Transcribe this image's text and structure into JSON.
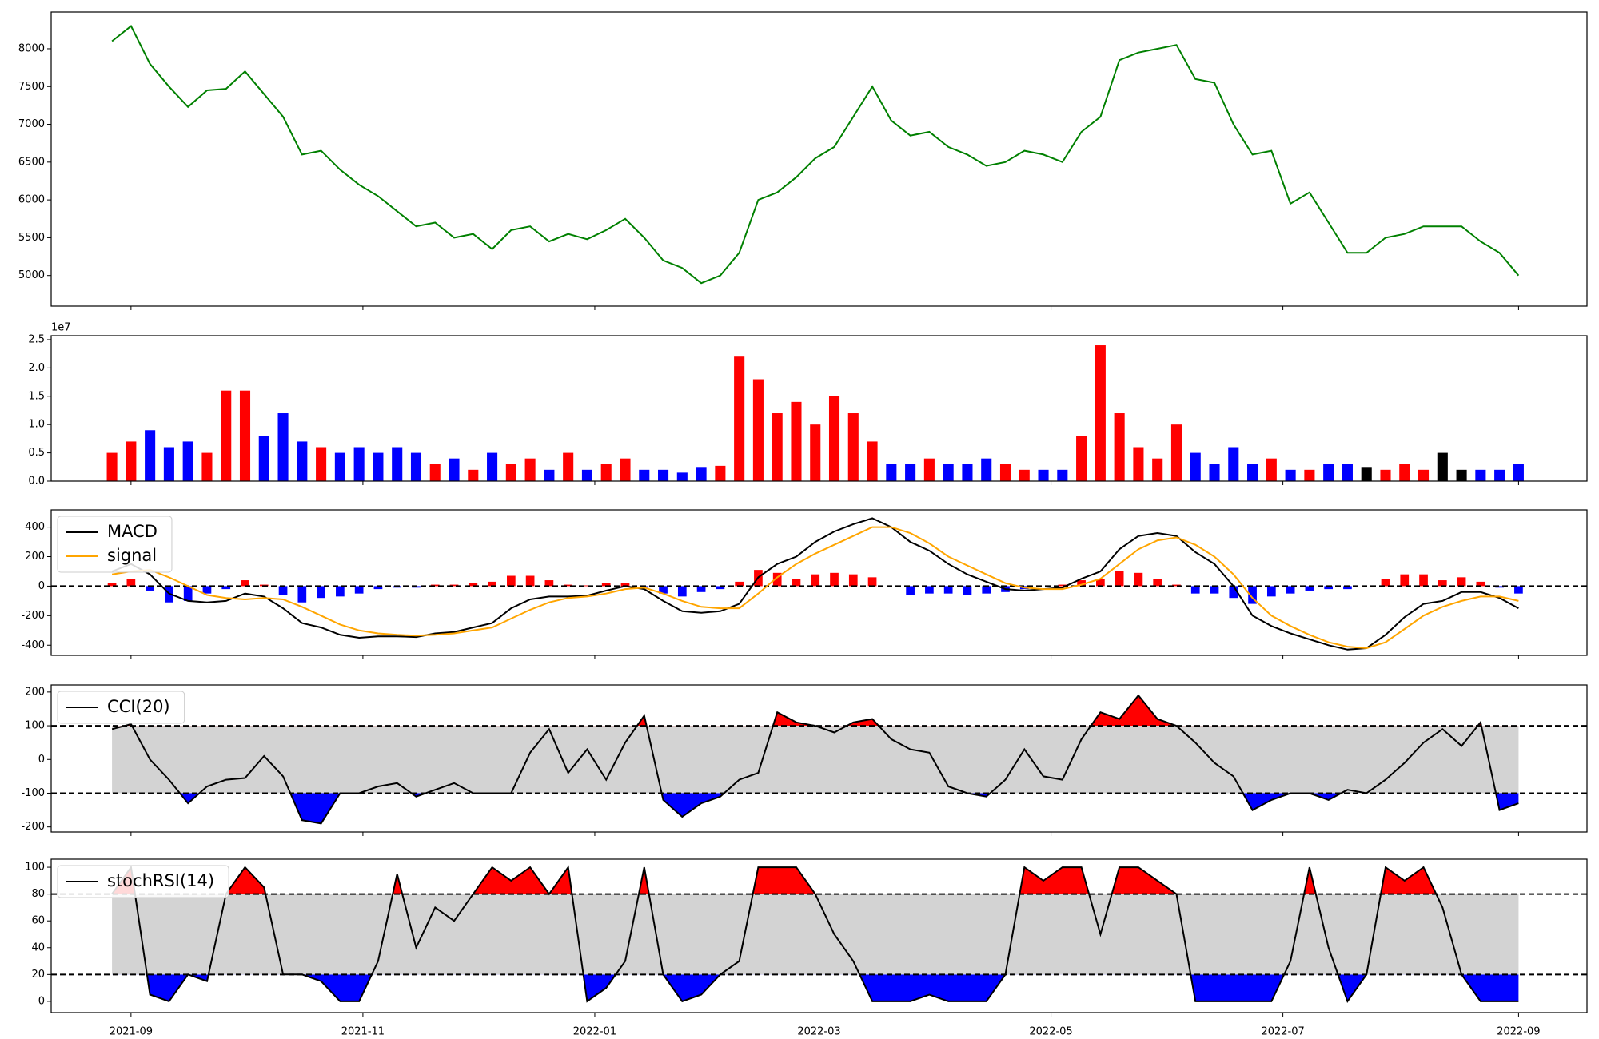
{
  "chart_data": [
    {
      "type": "line",
      "color": "green",
      "x": [
        "2021-08-27",
        "2021-09-01",
        "2021-09-06",
        "2021-09-11",
        "2021-09-16",
        "2021-09-21",
        "2021-09-26",
        "2021-10-01",
        "2021-10-06",
        "2021-10-11",
        "2021-10-16",
        "2021-10-21",
        "2021-10-26",
        "2021-10-31",
        "2021-11-05",
        "2021-11-10",
        "2021-11-15",
        "2021-11-20",
        "2021-11-25",
        "2021-11-30",
        "2021-12-05",
        "2021-12-10",
        "2021-12-15",
        "2021-12-20",
        "2021-12-25",
        "2021-12-30",
        "2022-01-04",
        "2022-01-09",
        "2022-01-14",
        "2022-01-19",
        "2022-01-24",
        "2022-01-29",
        "2022-02-03",
        "2022-02-08",
        "2022-02-13",
        "2022-02-18",
        "2022-02-23",
        "2022-02-28",
        "2022-03-05",
        "2022-03-10",
        "2022-03-15",
        "2022-03-20",
        "2022-03-25",
        "2022-03-30",
        "2022-04-04",
        "2022-04-09",
        "2022-04-14",
        "2022-04-19",
        "2022-04-24",
        "2022-04-29",
        "2022-05-04",
        "2022-05-09",
        "2022-05-14",
        "2022-05-19",
        "2022-05-24",
        "2022-05-29",
        "2022-06-03",
        "2022-06-08",
        "2022-06-13",
        "2022-06-18",
        "2022-06-23",
        "2022-06-28",
        "2022-07-03",
        "2022-07-08",
        "2022-07-13",
        "2022-07-18",
        "2022-07-23",
        "2022-07-28",
        "2022-08-02",
        "2022-08-07",
        "2022-08-12",
        "2022-08-17",
        "2022-08-22",
        "2022-08-27",
        "2022-09-01"
      ],
      "values": [
        8100,
        8300,
        7800,
        7500,
        7230,
        7450,
        7470,
        7700,
        7400,
        7100,
        6600,
        6650,
        6400,
        6200,
        6050,
        5850,
        5650,
        5700,
        5500,
        5550,
        5350,
        5600,
        5650,
        5450,
        5550,
        5480,
        5600,
        5750,
        5500,
        5200,
        5100,
        4900,
        5000,
        5300,
        6000,
        6100,
        6300,
        6550,
        6700,
        7100,
        7500,
        7050,
        6850,
        6900,
        6700,
        6600,
        6450,
        6500,
        6650,
        6600,
        6500,
        6900,
        7100,
        7850,
        7950,
        8000,
        8050,
        7600,
        7550,
        7000,
        6600,
        6650,
        5950,
        6100,
        5700,
        5300,
        5300,
        5500,
        5550,
        5650,
        5650,
        5650,
        5450,
        5300,
        5000
      ],
      "ylim": [
        4595,
        8486
      ],
      "yticks": [
        5000,
        5500,
        6000,
        6500,
        7000,
        7500,
        8000
      ]
    },
    {
      "type": "bar",
      "offset_label": "1e7",
      "values": [
        5000000,
        7000000,
        9000000,
        6000000,
        7000000,
        5000000,
        16000000,
        16000000,
        8000000,
        12000000,
        7000000,
        6000000,
        5000000,
        6000000,
        5000000,
        6000000,
        5000000,
        3000000,
        4000000,
        2000000,
        5000000,
        3000000,
        4000000,
        2000000,
        5000000,
        2000000,
        3000000,
        4000000,
        2000000,
        2000000,
        1500000,
        2500000,
        2700000,
        22000000,
        18000000,
        12000000,
        14000000,
        10000000,
        15000000,
        12000000,
        7000000,
        3000000,
        3000000,
        4000000,
        3000000,
        3000000,
        4000000,
        3000000,
        2000000,
        2000000,
        2000000,
        8000000,
        24000000,
        12000000,
        6000000,
        4000000,
        10000000,
        5000000,
        3000000,
        6000000,
        3000000,
        4000000,
        2000000,
        2000000,
        3000000,
        3000000,
        2500000,
        2000000,
        3000000,
        2000000,
        5000000,
        2000000,
        2000000,
        2000000,
        3000000
      ],
      "colors": [
        "red",
        "red",
        "blue",
        "blue",
        "blue",
        "red",
        "red",
        "red",
        "blue",
        "blue",
        "blue",
        "red",
        "blue",
        "blue",
        "blue",
        "blue",
        "blue",
        "red",
        "blue",
        "red",
        "blue",
        "red",
        "red",
        "blue",
        "red",
        "blue",
        "red",
        "red",
        "blue",
        "blue",
        "blue",
        "blue",
        "red",
        "red",
        "red",
        "red",
        "red",
        "red",
        "red",
        "red",
        "red",
        "blue",
        "blue",
        "red",
        "blue",
        "blue",
        "blue",
        "red",
        "red",
        "blue",
        "blue",
        "red",
        "red",
        "red",
        "red",
        "red",
        "red",
        "blue",
        "blue",
        "blue",
        "blue",
        "red",
        "blue",
        "red",
        "blue",
        "blue",
        "black",
        "red",
        "red",
        "red",
        "black",
        "black",
        "blue",
        "blue",
        "blue"
      ],
      "ylim": [
        0,
        25700000
      ],
      "yticks": [
        {
          "value": 0,
          "label": "0.0"
        },
        {
          "value": 5000000,
          "label": "0.5"
        },
        {
          "value": 10000000,
          "label": "1.0"
        },
        {
          "value": 15000000,
          "label": "1.5"
        },
        {
          "value": 20000000,
          "label": "2.0"
        },
        {
          "value": 25000000,
          "label": "2.5"
        }
      ]
    },
    {
      "type": "macd",
      "legend": "upper left",
      "reference_lines": [
        0
      ],
      "series": [
        {
          "name": "MACD",
          "color": "black",
          "values": [
            100,
            150,
            80,
            -50,
            -100,
            -110,
            -100,
            -50,
            -70,
            -150,
            -250,
            -280,
            -330,
            -350,
            -340,
            -340,
            -345,
            -320,
            -310,
            -280,
            -250,
            -150,
            -90,
            -70,
            -70,
            -65,
            -30,
            0,
            -20,
            -100,
            -170,
            -180,
            -170,
            -120,
            60,
            150,
            200,
            300,
            370,
            420,
            460,
            400,
            300,
            240,
            150,
            80,
            30,
            -20,
            -30,
            -20,
            -10,
            50,
            100,
            250,
            340,
            360,
            340,
            230,
            150,
            0,
            -200,
            -270,
            -320,
            -360,
            -400,
            -430,
            -420,
            -330,
            -210,
            -120,
            -100,
            -40,
            -40,
            -80,
            -150
          ]
        },
        {
          "name": "signal",
          "color": "orange",
          "values": [
            80,
            100,
            110,
            60,
            0,
            -60,
            -80,
            -90,
            -80,
            -90,
            -140,
            -200,
            -260,
            -300,
            -320,
            -330,
            -335,
            -330,
            -320,
            -300,
            -280,
            -220,
            -160,
            -110,
            -80,
            -70,
            -50,
            -20,
            -10,
            -50,
            -100,
            -140,
            -150,
            -150,
            -50,
            60,
            150,
            220,
            280,
            340,
            400,
            400,
            360,
            290,
            200,
            140,
            80,
            20,
            -10,
            -20,
            -20,
            10,
            50,
            150,
            250,
            310,
            330,
            280,
            200,
            80,
            -80,
            -200,
            -270,
            -330,
            -380,
            -410,
            -420,
            -380,
            -290,
            -200,
            -140,
            -100,
            -70,
            -70,
            -100
          ]
        }
      ],
      "histogram": {
        "positive_color": "red",
        "negative_color": "blue",
        "values": [
          20,
          50,
          -30,
          -110,
          -100,
          -50,
          -20,
          40,
          10,
          -60,
          -110,
          -80,
          -70,
          -50,
          -20,
          -10,
          -10,
          10,
          10,
          20,
          30,
          70,
          70,
          40,
          10,
          5,
          20,
          20,
          -10,
          -50,
          -70,
          -40,
          -20,
          30,
          110,
          90,
          50,
          80,
          90,
          80,
          60,
          0,
          -60,
          -50,
          -50,
          -60,
          -50,
          -40,
          -20,
          0,
          10,
          40,
          50,
          100,
          90,
          50,
          10,
          -50,
          -50,
          -80,
          -120,
          -70,
          -50,
          -30,
          -20,
          -20,
          0,
          50,
          80,
          80,
          40,
          60,
          30,
          -10,
          -50
        ]
      },
      "ylim": [
        -469,
        517
      ],
      "yticks": [
        -400,
        -200,
        0,
        200,
        400
      ]
    },
    {
      "type": "band",
      "legend": "upper left",
      "thresholds": [
        -100,
        100
      ],
      "band_color": "lightgray",
      "upper_color": "red",
      "lower_color": "blue",
      "series": [
        {
          "name": "CCI(20)",
          "color": "black",
          "values": [
            90,
            105,
            0,
            -60,
            -130,
            -80,
            -60,
            -55,
            10,
            -50,
            -180,
            -190,
            -100,
            -100,
            -80,
            -70,
            -110,
            -90,
            -70,
            -100,
            -100,
            -100,
            20,
            90,
            -40,
            30,
            -60,
            50,
            130,
            -120,
            -170,
            -130,
            -110,
            -60,
            -40,
            140,
            110,
            100,
            80,
            110,
            120,
            60,
            30,
            20,
            -80,
            -100,
            -110,
            -60,
            30,
            -50,
            -60,
            60,
            140,
            120,
            190,
            120,
            100,
            50,
            -10,
            -50,
            -150,
            -120,
            -100,
            -100,
            -120,
            -90,
            -100,
            -60,
            -10,
            50,
            90,
            40,
            110,
            -150,
            -130
          ]
        }
      ],
      "ylim": [
        -215,
        221
      ],
      "yticks": [
        -200,
        -100,
        0,
        100,
        200
      ]
    },
    {
      "type": "band",
      "legend": "upper left",
      "thresholds": [
        20,
        80
      ],
      "band_color": "lightgray",
      "upper_color": "red",
      "lower_color": "blue",
      "series": [
        {
          "name": "stochRSI(14)",
          "color": "black",
          "values": [
            80,
            100,
            5,
            0,
            20,
            15,
            80,
            100,
            85,
            20,
            20,
            15,
            0,
            0,
            30,
            95,
            40,
            70,
            60,
            80,
            100,
            90,
            100,
            80,
            100,
            0,
            10,
            30,
            100,
            20,
            0,
            5,
            20,
            30,
            100,
            100,
            100,
            80,
            50,
            30,
            0,
            0,
            0,
            5,
            0,
            0,
            0,
            20,
            100,
            90,
            100,
            100,
            50,
            100,
            100,
            90,
            80,
            0,
            0,
            0,
            0,
            0,
            30,
            100,
            40,
            0,
            20,
            100,
            90,
            100,
            70,
            20,
            0,
            0,
            0
          ]
        }
      ],
      "ylim": [
        -8.4,
        106
      ],
      "yticks": [
        0,
        20,
        40,
        60,
        80,
        100
      ],
      "xlim": [
        "2021-08-11",
        "2022-09-19"
      ],
      "xticks": [
        "2021-09",
        "2021-11",
        "2022-01",
        "2022-03",
        "2022-05",
        "2022-07",
        "2022-09"
      ]
    }
  ]
}
